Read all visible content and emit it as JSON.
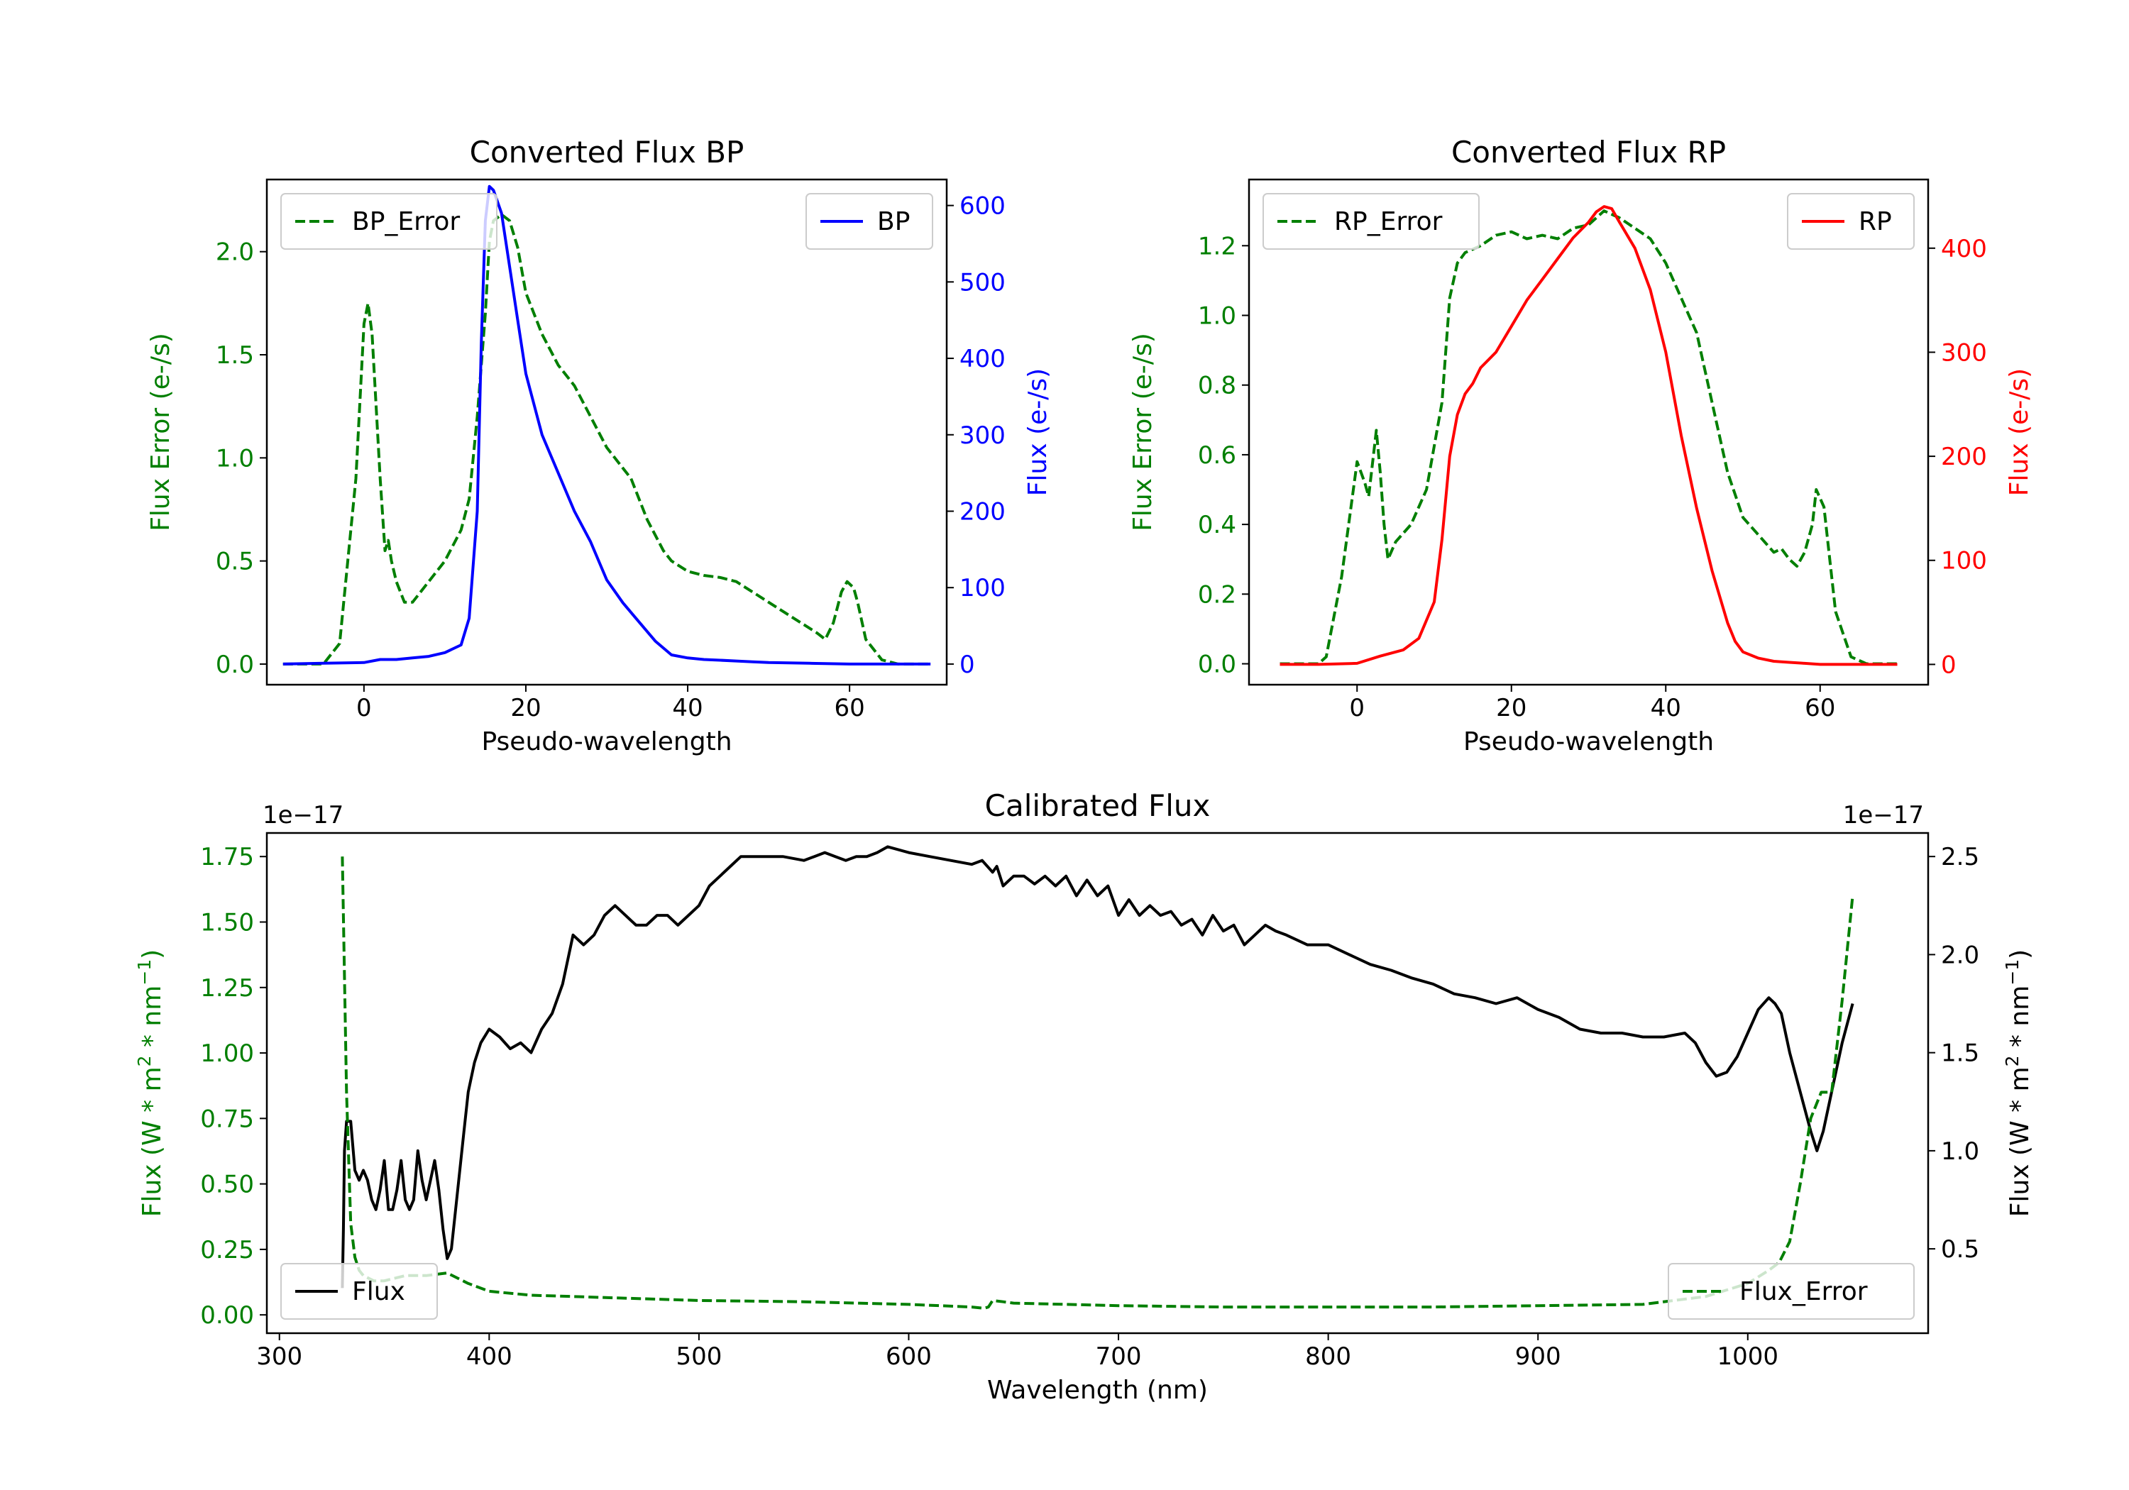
{
  "colors": {
    "blue": "#0000ff",
    "red": "#ff0000",
    "green": "#007f00",
    "black": "#000000"
  },
  "chart_data": [
    {
      "id": "bp",
      "type": "line",
      "title": "Converted Flux BP",
      "xlabel": "Pseudo-wavelength",
      "ylabel_left": "Flux Error (e-/s)",
      "ylabel_right": "Flux (e-/s)",
      "xlim": [
        -12,
        72
      ],
      "ylim_left": [
        -0.1,
        2.35
      ],
      "ylim_right": [
        -27,
        634
      ],
      "xticks": [
        0,
        20,
        40,
        60
      ],
      "yticks_left": [
        0.0,
        0.5,
        1.0,
        1.5,
        2.0
      ],
      "yticks_right": [
        0,
        100,
        200,
        300,
        400,
        500,
        600
      ],
      "left_tick_labels": [
        "0.0",
        "0.5",
        "1.0",
        "1.5",
        "2.0"
      ],
      "right_tick_labels": [
        "0",
        "100",
        "200",
        "300",
        "400",
        "500",
        "600"
      ],
      "x_tick_labels": [
        "0",
        "20",
        "40",
        "60"
      ],
      "series": [
        {
          "name": "BP_Error",
          "axis": "left",
          "style": "dashed",
          "color": "#007f00",
          "x": [
            -10,
            -5,
            -3,
            -1,
            0,
            0.5,
            1,
            2,
            2.6,
            3,
            3.4,
            4,
            5,
            6,
            8,
            10,
            12,
            13,
            14,
            15,
            15.5,
            16,
            17,
            18,
            19,
            20,
            22,
            24,
            26,
            28,
            30,
            32,
            33,
            35,
            37,
            38,
            40,
            42,
            44,
            46,
            48,
            50,
            52,
            54,
            56,
            57,
            58,
            59,
            59.7,
            60.5,
            61,
            62,
            64,
            66,
            68,
            70
          ],
          "y": [
            0,
            0,
            0.1,
            0.9,
            1.65,
            1.75,
            1.6,
            0.9,
            0.55,
            0.6,
            0.5,
            0.4,
            0.3,
            0.3,
            0.4,
            0.5,
            0.65,
            0.8,
            1.2,
            1.7,
            2.05,
            2.15,
            2.18,
            2.15,
            2.02,
            1.8,
            1.6,
            1.45,
            1.35,
            1.2,
            1.05,
            0.95,
            0.9,
            0.7,
            0.55,
            0.5,
            0.45,
            0.43,
            0.42,
            0.4,
            0.35,
            0.3,
            0.25,
            0.2,
            0.15,
            0.12,
            0.2,
            0.35,
            0.4,
            0.37,
            0.3,
            0.12,
            0.02,
            0,
            0,
            0
          ]
        },
        {
          "name": "BP",
          "axis": "right",
          "style": "solid",
          "color": "#0000ff",
          "x": [
            -10,
            -5,
            0,
            2,
            4,
            6,
            8,
            10,
            12,
            13,
            14,
            14.5,
            15,
            15.5,
            16,
            17,
            18,
            19,
            20,
            22,
            24,
            26,
            28,
            30,
            32,
            34,
            36,
            38,
            40,
            42,
            44,
            46,
            48,
            50,
            55,
            60,
            65,
            70
          ],
          "y": [
            0,
            1,
            2,
            6,
            6,
            8,
            10,
            15,
            25,
            60,
            200,
            420,
            580,
            625,
            620,
            590,
            520,
            450,
            380,
            300,
            250,
            200,
            160,
            110,
            80,
            55,
            30,
            12,
            8,
            6,
            5,
            4,
            3,
            2,
            1,
            0,
            0,
            0
          ]
        }
      ],
      "legend": [
        {
          "label": "BP_Error",
          "position": "upper-left"
        },
        {
          "label": "BP",
          "position": "upper-right"
        }
      ]
    },
    {
      "id": "rp",
      "type": "line",
      "title": "Converted Flux RP",
      "xlabel": "Pseudo-wavelength",
      "ylabel_left": "Flux Error (e-/s)",
      "ylabel_right": "Flux (e-/s)",
      "xlim": [
        -14,
        74
      ],
      "ylim_left": [
        -0.06,
        1.39
      ],
      "ylim_right": [
        -19.5,
        466
      ],
      "xticks": [
        0,
        20,
        40,
        60
      ],
      "yticks_left": [
        0.0,
        0.2,
        0.4,
        0.6,
        0.8,
        1.0,
        1.2
      ],
      "yticks_right": [
        0,
        100,
        200,
        300,
        400
      ],
      "left_tick_labels": [
        "0.0",
        "0.2",
        "0.4",
        "0.6",
        "0.8",
        "1.0",
        "1.2"
      ],
      "right_tick_labels": [
        "0",
        "100",
        "200",
        "300",
        "400"
      ],
      "x_tick_labels": [
        "0",
        "20",
        "40",
        "60"
      ],
      "series": [
        {
          "name": "RP_Error",
          "axis": "left",
          "style": "dashed",
          "color": "#007f00",
          "x": [
            -10,
            -5,
            -4,
            -2,
            0,
            1,
            1.5,
            2.5,
            3,
            3.5,
            4,
            5,
            7,
            9,
            11,
            12,
            13,
            14,
            16,
            18,
            20,
            22,
            24,
            26,
            28,
            30,
            32,
            34,
            36,
            38,
            40,
            42,
            44,
            46,
            48,
            50,
            52,
            54,
            55,
            56,
            57,
            58,
            59,
            59.5,
            60.5,
            61,
            62,
            64,
            66,
            70
          ],
          "y": [
            0,
            0,
            0.02,
            0.25,
            0.58,
            0.52,
            0.48,
            0.67,
            0.55,
            0.4,
            0.3,
            0.35,
            0.4,
            0.5,
            0.75,
            1.05,
            1.15,
            1.18,
            1.2,
            1.23,
            1.24,
            1.22,
            1.23,
            1.22,
            1.25,
            1.26,
            1.3,
            1.28,
            1.25,
            1.22,
            1.15,
            1.05,
            0.95,
            0.75,
            0.55,
            0.42,
            0.37,
            0.32,
            0.33,
            0.3,
            0.28,
            0.32,
            0.4,
            0.5,
            0.45,
            0.35,
            0.15,
            0.02,
            0,
            0
          ]
        },
        {
          "name": "RP",
          "axis": "right",
          "style": "solid",
          "color": "#ff0000",
          "x": [
            -10,
            -5,
            0,
            3,
            6,
            8,
            10,
            11,
            12,
            13,
            14,
            15,
            16,
            18,
            20,
            22,
            24,
            26,
            28,
            30,
            31,
            32,
            33,
            34,
            36,
            38,
            40,
            42,
            44,
            46,
            48,
            49,
            50,
            52,
            54,
            56,
            58,
            60,
            62,
            65,
            70
          ],
          "y": [
            0,
            0,
            1,
            8,
            14,
            25,
            60,
            120,
            200,
            240,
            260,
            270,
            285,
            300,
            325,
            350,
            370,
            390,
            410,
            425,
            435,
            440,
            438,
            425,
            400,
            360,
            300,
            220,
            150,
            90,
            40,
            22,
            12,
            6,
            3,
            2,
            1,
            0,
            0,
            0,
            0
          ]
        }
      ],
      "legend": [
        {
          "label": "RP_Error",
          "position": "upper-left"
        },
        {
          "label": "RP",
          "position": "upper-right"
        }
      ]
    },
    {
      "id": "cal",
      "type": "line",
      "title": "Calibrated Flux",
      "xlabel": "Wavelength (nm)",
      "ylabel_left": "Flux (W * m2 * nm-1)",
      "ylabel_right": "Flux (W * m2 * nm-1)",
      "left_offset": "1e−17",
      "right_offset": "1e−17",
      "xlim": [
        294,
        1086
      ],
      "ylim_left": [
        -0.07,
        1.84
      ],
      "ylim_right": [
        0.07,
        2.62
      ],
      "xticks": [
        300,
        400,
        500,
        600,
        700,
        800,
        900,
        1000
      ],
      "yticks_left": [
        0.0,
        0.25,
        0.5,
        0.75,
        1.0,
        1.25,
        1.5,
        1.75
      ],
      "yticks_right": [
        0.5,
        1.0,
        1.5,
        2.0,
        2.5
      ],
      "left_tick_labels": [
        "0.00",
        "0.25",
        "0.50",
        "0.75",
        "1.00",
        "1.25",
        "1.50",
        "1.75"
      ],
      "right_tick_labels": [
        "0.5",
        "1.0",
        "1.5",
        "2.0",
        "2.5"
      ],
      "x_tick_labels": [
        "300",
        "400",
        "500",
        "600",
        "700",
        "800",
        "900",
        "1000"
      ],
      "series": [
        {
          "name": "Flux",
          "axis": "right",
          "style": "solid",
          "color": "#000000",
          "x": [
            330,
            330.5,
            331,
            332,
            334,
            336,
            338,
            340,
            342,
            344,
            346,
            348,
            350,
            352,
            354,
            356,
            358,
            360,
            362,
            364,
            366,
            368,
            370,
            372,
            374,
            376,
            378,
            380,
            382,
            384,
            386,
            388,
            390,
            393,
            396,
            400,
            405,
            410,
            415,
            420,
            425,
            430,
            435,
            440,
            445,
            450,
            455,
            460,
            465,
            470,
            475,
            480,
            485,
            490,
            495,
            500,
            505,
            510,
            515,
            520,
            530,
            540,
            550,
            555,
            560,
            565,
            570,
            575,
            580,
            585,
            590,
            600,
            610,
            620,
            630,
            635,
            640,
            642,
            645,
            650,
            655,
            660,
            665,
            670,
            675,
            680,
            685,
            690,
            695,
            700,
            705,
            710,
            715,
            720,
            725,
            730,
            735,
            740,
            745,
            750,
            755,
            760,
            765,
            770,
            775,
            780,
            790,
            800,
            810,
            820,
            830,
            840,
            850,
            860,
            870,
            880,
            890,
            900,
            910,
            920,
            930,
            940,
            950,
            960,
            970,
            975,
            980,
            985,
            990,
            995,
            1000,
            1005,
            1010,
            1013,
            1016,
            1020,
            1025,
            1030,
            1033,
            1036,
            1040,
            1045,
            1050
          ],
          "y": [
            0.3,
            0.6,
            1.0,
            1.15,
            1.15,
            0.9,
            0.85,
            0.9,
            0.85,
            0.75,
            0.7,
            0.8,
            0.95,
            0.7,
            0.7,
            0.8,
            0.95,
            0.75,
            0.7,
            0.75,
            1.0,
            0.85,
            0.75,
            0.85,
            0.95,
            0.8,
            0.6,
            0.45,
            0.5,
            0.7,
            0.9,
            1.1,
            1.3,
            1.45,
            1.55,
            1.62,
            1.58,
            1.52,
            1.55,
            1.5,
            1.62,
            1.7,
            1.85,
            2.1,
            2.05,
            2.1,
            2.2,
            2.25,
            2.2,
            2.15,
            2.15,
            2.2,
            2.2,
            2.15,
            2.2,
            2.25,
            2.35,
            2.4,
            2.45,
            2.5,
            2.5,
            2.5,
            2.48,
            2.5,
            2.52,
            2.5,
            2.48,
            2.5,
            2.5,
            2.52,
            2.55,
            2.52,
            2.5,
            2.48,
            2.46,
            2.48,
            2.42,
            2.45,
            2.35,
            2.4,
            2.4,
            2.36,
            2.4,
            2.35,
            2.4,
            2.3,
            2.38,
            2.3,
            2.35,
            2.2,
            2.28,
            2.2,
            2.25,
            2.2,
            2.22,
            2.15,
            2.18,
            2.1,
            2.2,
            2.12,
            2.15,
            2.05,
            2.1,
            2.15,
            2.12,
            2.1,
            2.05,
            2.05,
            2.0,
            1.95,
            1.92,
            1.88,
            1.85,
            1.8,
            1.78,
            1.75,
            1.78,
            1.72,
            1.68,
            1.62,
            1.6,
            1.6,
            1.58,
            1.58,
            1.6,
            1.55,
            1.45,
            1.38,
            1.4,
            1.48,
            1.6,
            1.72,
            1.78,
            1.75,
            1.7,
            1.5,
            1.3,
            1.1,
            1.0,
            1.1,
            1.3,
            1.55,
            1.75
          ]
        },
        {
          "name": "Flux_Error",
          "axis": "left",
          "style": "dashed",
          "color": "#007f00",
          "x": [
            330,
            332,
            334,
            336,
            338,
            340,
            345,
            350,
            360,
            370,
            380,
            390,
            400,
            420,
            440,
            460,
            500,
            550,
            600,
            630,
            636,
            638,
            640,
            645,
            650,
            700,
            750,
            800,
            850,
            900,
            950,
            980,
            1000,
            1010,
            1015,
            1020,
            1025,
            1030,
            1035,
            1040,
            1045,
            1050
          ],
          "y": [
            1.75,
            0.85,
            0.35,
            0.22,
            0.17,
            0.15,
            0.13,
            0.13,
            0.15,
            0.15,
            0.16,
            0.12,
            0.09,
            0.075,
            0.07,
            0.065,
            0.055,
            0.05,
            0.04,
            0.03,
            0.025,
            0.03,
            0.055,
            0.05,
            0.045,
            0.035,
            0.03,
            0.03,
            0.03,
            0.035,
            0.04,
            0.07,
            0.12,
            0.17,
            0.2,
            0.28,
            0.5,
            0.75,
            0.85,
            0.85,
            1.2,
            1.6
          ]
        }
      ],
      "legend": [
        {
          "label": "Flux",
          "position": "lower-left"
        },
        {
          "label": "Flux_Error",
          "position": "lower-right"
        }
      ]
    }
  ]
}
